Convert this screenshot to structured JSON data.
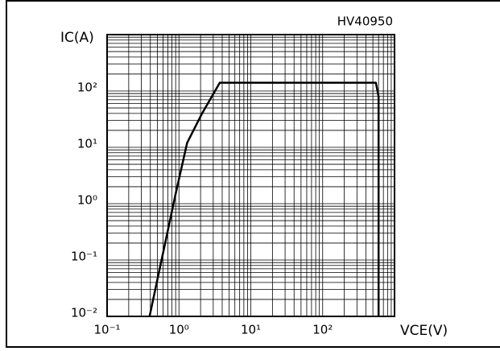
{
  "chart_data": {
    "type": "line",
    "title": "HV40950",
    "y_label": "IC(A)",
    "x_label": "VCE(V)",
    "log_x": true,
    "log_y": true,
    "grid": true,
    "xlim": [
      0.1,
      1000
    ],
    "ylim": [
      0.01,
      1000
    ],
    "xticks": [
      {
        "value": 0.1,
        "label": "10⁻¹"
      },
      {
        "value": 1,
        "label": "10⁰"
      },
      {
        "value": 10,
        "label": "10¹"
      },
      {
        "value": 100,
        "label": "10²"
      }
    ],
    "yticks": [
      {
        "value": 0.01,
        "label": "10⁻²"
      },
      {
        "value": 0.1,
        "label": "10⁻¹"
      },
      {
        "value": 1,
        "label": "10⁰"
      },
      {
        "value": 10,
        "label": "10¹"
      },
      {
        "value": 100,
        "label": "10²"
      }
    ],
    "xminorticks": [
      0.2,
      0.3,
      0.4,
      0.5,
      0.6,
      0.7,
      0.8,
      0.9,
      2,
      3,
      4,
      5,
      6,
      7,
      8,
      9,
      20,
      30,
      40,
      50,
      60,
      70,
      80,
      90,
      200,
      300,
      400,
      500,
      600,
      700,
      800,
      900
    ],
    "yminorticks": [
      0.02,
      0.03,
      0.04,
      0.05,
      0.06,
      0.07,
      0.08,
      0.09,
      0.2,
      0.3,
      0.4,
      0.5,
      0.6,
      0.7,
      0.8,
      0.9,
      2,
      3,
      4,
      5,
      6,
      7,
      8,
      9,
      20,
      30,
      40,
      50,
      60,
      70,
      80,
      90,
      200,
      300,
      400,
      500,
      600,
      700,
      800,
      900
    ],
    "series": [
      {
        "color": "#000000",
        "x": [
          0.39,
          0.9,
          1.3,
          2.1,
          3.7,
          550,
          600,
          600
        ],
        "values": [
          0.01,
          1.5,
          12,
          40,
          140,
          140,
          80,
          0.01
        ]
      }
    ]
  }
}
